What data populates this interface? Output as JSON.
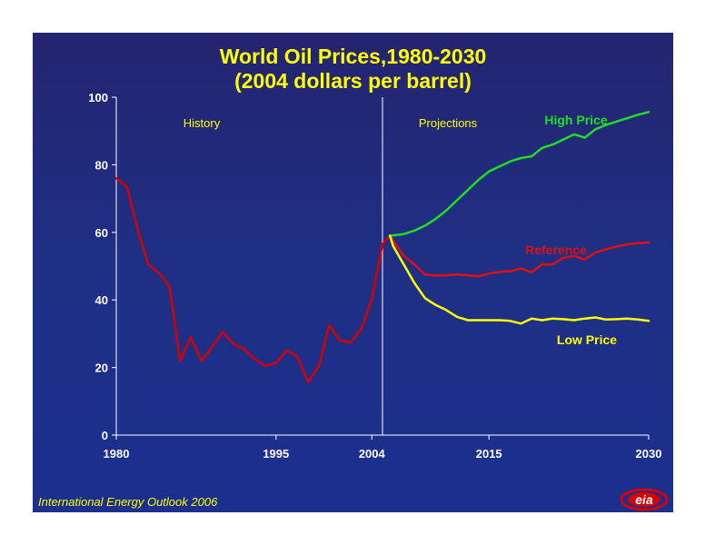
{
  "title": {
    "line1": "World Oil Prices,1980-2030",
    "line2": "(2004 dollars per barrel)"
  },
  "footer": {
    "source": "International Energy Outlook 2006",
    "logo_text": "eia"
  },
  "colors": {
    "background": "#1f2f84",
    "title": "#ffff00",
    "history": "#d40000",
    "reference": "#e01010",
    "high": "#22dd22",
    "low": "#ffff00",
    "axis": "#ffffff"
  },
  "chart_data": {
    "type": "line",
    "ylim": [
      0,
      100
    ],
    "xlim": [
      1980,
      2030
    ],
    "y_ticks": [
      0,
      20,
      40,
      60,
      80,
      100
    ],
    "x_ticks": [
      1980,
      1995,
      2004,
      2015,
      2030
    ],
    "divider_x": 2005,
    "region_labels": {
      "history": "History",
      "projections": "Projections"
    },
    "series": [
      {
        "key": "history",
        "color": "#d40000",
        "x": [
          1980,
          1981,
          1982,
          1983,
          1984,
          1985,
          1986,
          1987,
          1988,
          1989,
          1990,
          1991,
          1992,
          1993,
          1994,
          1995,
          1996,
          1997,
          1998,
          1999,
          2000,
          2001,
          2002,
          2003,
          2004,
          2005
        ],
        "y": [
          76,
          73.5,
          61,
          50.5,
          48,
          44,
          22,
          29,
          22,
          26,
          30.5,
          27,
          25.5,
          22.5,
          20.5,
          21.3,
          25,
          23.4,
          15.7,
          20.2,
          32.5,
          28,
          27.4,
          31.4,
          40.3,
          56.5
        ]
      },
      {
        "key": "history_end",
        "color": "#d40000",
        "x": [
          2005,
          2005.7
        ],
        "y": [
          56.5,
          59
        ]
      },
      {
        "key": "reference",
        "name": "Reference",
        "color": "#e01010",
        "x": [
          2005.7,
          2006,
          2007,
          2008,
          2009,
          2010,
          2011,
          2012,
          2013,
          2014,
          2015,
          2016,
          2017,
          2018,
          2019,
          2020,
          2021,
          2022,
          2023,
          2024,
          2025,
          2026,
          2027,
          2028,
          2029,
          2030
        ],
        "y": [
          59,
          57.5,
          53,
          50.5,
          47.5,
          47.2,
          47.3,
          47.5,
          47.3,
          47,
          47.8,
          48.3,
          48.5,
          49.3,
          48.2,
          50.5,
          50.5,
          52.5,
          53,
          52,
          54,
          55,
          55.8,
          56.5,
          56.8,
          57
        ]
      },
      {
        "key": "high",
        "name": "High Price",
        "color": "#22dd22",
        "x": [
          2005.7,
          2006,
          2007,
          2008,
          2009,
          2010,
          2011,
          2012,
          2013,
          2014,
          2015,
          2016,
          2017,
          2018,
          2019,
          2020,
          2021,
          2022,
          2023,
          2024,
          2025,
          2026,
          2027,
          2028,
          2029,
          2030
        ],
        "y": [
          59,
          59.1,
          59.5,
          60.5,
          62,
          64,
          66.5,
          69.5,
          72.5,
          75.5,
          78,
          79.5,
          81,
          82,
          82.5,
          85,
          86,
          87.5,
          89,
          88,
          90.5,
          91.8,
          92.8,
          93.8,
          94.8,
          95.6
        ]
      },
      {
        "key": "low",
        "name": "Low Price",
        "color": "#ffff00",
        "x": [
          2005.7,
          2006,
          2007,
          2008,
          2009,
          2010,
          2011,
          2012,
          2013,
          2014,
          2015,
          2016,
          2017,
          2018,
          2019,
          2020,
          2021,
          2022,
          2023,
          2024,
          2025,
          2026,
          2027,
          2028,
          2029,
          2030
        ],
        "y": [
          59,
          56,
          50.5,
          45,
          40.5,
          38.5,
          37,
          35,
          34,
          34,
          34,
          34,
          33.8,
          33,
          34.5,
          34,
          34.5,
          34.3,
          34,
          34.5,
          34.8,
          34.2,
          34.3,
          34.5,
          34.2,
          33.8
        ]
      }
    ]
  }
}
